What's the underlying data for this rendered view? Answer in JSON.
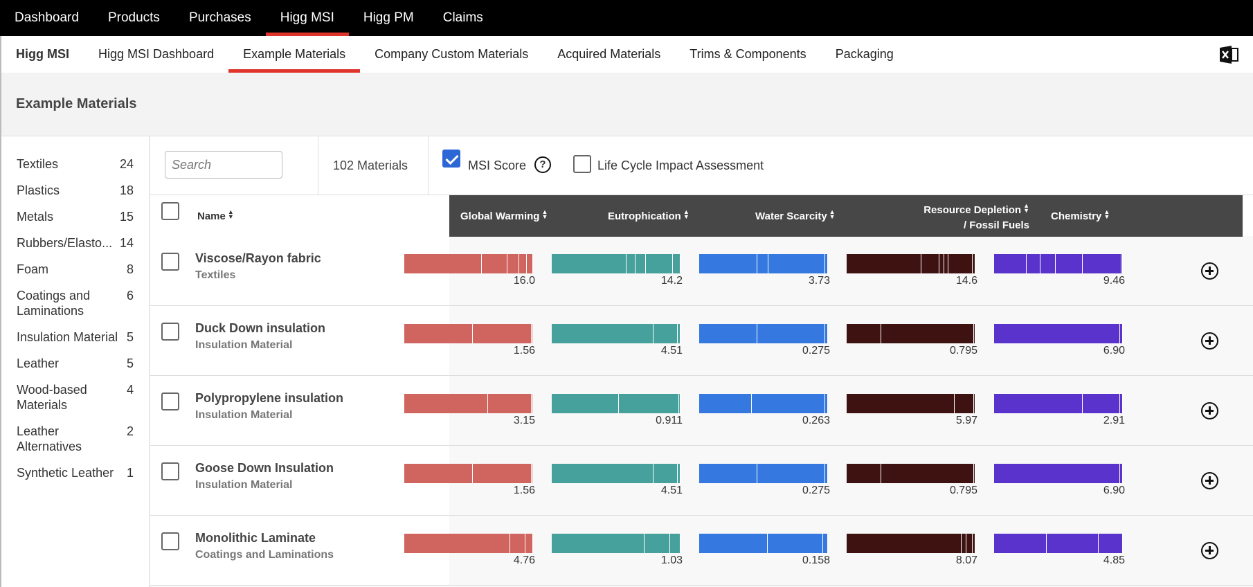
{
  "topnav": [
    "Dashboard",
    "Products",
    "Purchases",
    "Higg MSI",
    "Higg PM",
    "Claims"
  ],
  "subnav": {
    "brand": "Higg MSI",
    "items": [
      "Higg MSI Dashboard",
      "Example Materials",
      "Company Custom Materials",
      "Acquired Materials",
      "Trims & Components",
      "Packaging"
    ]
  },
  "page_title": "Example Materials",
  "categories": [
    {
      "label": "Textiles",
      "count": "24"
    },
    {
      "label": "Plastics",
      "count": "18"
    },
    {
      "label": "Metals",
      "count": "15"
    },
    {
      "label": "Rubbers/Elasto...",
      "count": "14"
    },
    {
      "label": "Foam",
      "count": "8"
    },
    {
      "label": "Coatings and Laminations",
      "count": "6"
    },
    {
      "label": "Insulation Material",
      "count": "5"
    },
    {
      "label": "Leather",
      "count": "5"
    },
    {
      "label": "Wood-based Materials",
      "count": "4"
    },
    {
      "label": "Leather Alternatives",
      "count": "2"
    },
    {
      "label": "Synthetic Leather",
      "count": "1"
    }
  ],
  "toolbar": {
    "search_placeholder": "Search",
    "materials_count": "102 Materials",
    "msi_score_label": "MSI Score",
    "lcia_label": "Life Cycle Impact Assessment"
  },
  "table": {
    "name_header": "Name",
    "columns": [
      {
        "label": "Global Warming",
        "color": "#d0645f"
      },
      {
        "label": "Eutrophication",
        "color": "#46a19c"
      },
      {
        "label": "Water Scarcity",
        "color": "#3478e0"
      },
      {
        "label": "Resource Depletion / Fossil Fuels",
        "line1": "Resource Depletion",
        "line2": "/ Fossil Fuels",
        "color": "#3d1210"
      },
      {
        "label": "Chemistry",
        "color": "#5a33cc"
      }
    ],
    "rows": [
      {
        "name": "Viscose/Rayon fabric",
        "category": "Textiles",
        "values": [
          "16.0",
          "14.2",
          "3.73",
          "14.6",
          "9.46"
        ],
        "segments": [
          [
            0.6,
            0.8,
            0.89,
            0.95,
            1.0
          ],
          [
            0.58,
            0.65,
            0.73,
            0.94,
            1.0
          ],
          [
            0.45,
            0.54,
            0.98,
            1.0
          ],
          [
            0.58,
            0.72,
            0.76,
            0.79,
            0.98,
            1.0
          ],
          [
            0.25,
            0.36,
            0.48,
            0.69,
            0.99,
            1.0
          ]
        ]
      },
      {
        "name": "Duck Down insulation",
        "category": "Insulation Material",
        "values": [
          "1.56",
          "4.51",
          "0.275",
          "0.795",
          "6.90"
        ],
        "segments": [
          [
            0.53,
            0.99,
            1.0
          ],
          [
            0.79,
            0.98,
            1.0
          ],
          [
            0.45,
            0.98,
            1.0
          ],
          [
            0.27,
            0.99,
            1.0
          ],
          [
            0.98,
            1.0
          ]
        ]
      },
      {
        "name": "Polypropylene insulation",
        "category": "Insulation Material",
        "values": [
          "3.15",
          "0.911",
          "0.263",
          "5.97",
          "2.91"
        ],
        "segments": [
          [
            0.65,
            0.99,
            1.0
          ],
          [
            0.52,
            0.99,
            1.0
          ],
          [
            0.41,
            0.98,
            1.0
          ],
          [
            0.84,
            0.99,
            1.0
          ],
          [
            0.69,
            0.98,
            1.0
          ]
        ]
      },
      {
        "name": "Goose Down Insulation",
        "category": "Insulation Material",
        "values": [
          "1.56",
          "4.51",
          "0.275",
          "0.795",
          "6.90"
        ],
        "segments": [
          [
            0.53,
            0.99,
            1.0
          ],
          [
            0.79,
            0.98,
            1.0
          ],
          [
            0.45,
            0.98,
            1.0
          ],
          [
            0.27,
            0.99,
            1.0
          ],
          [
            0.98,
            1.0
          ]
        ]
      },
      {
        "name": "Monolithic Laminate",
        "category": "Coatings and Laminations",
        "values": [
          "4.76",
          "1.03",
          "0.158",
          "8.07",
          "4.85"
        ],
        "segments": [
          [
            0.82,
            0.94,
            1.0
          ],
          [
            0.72,
            0.92,
            1.0
          ],
          [
            0.53,
            0.96,
            1.0
          ],
          [
            0.89,
            0.93,
            0.98,
            1.0
          ],
          [
            0.41,
            0.81,
            1.0
          ]
        ]
      }
    ]
  }
}
